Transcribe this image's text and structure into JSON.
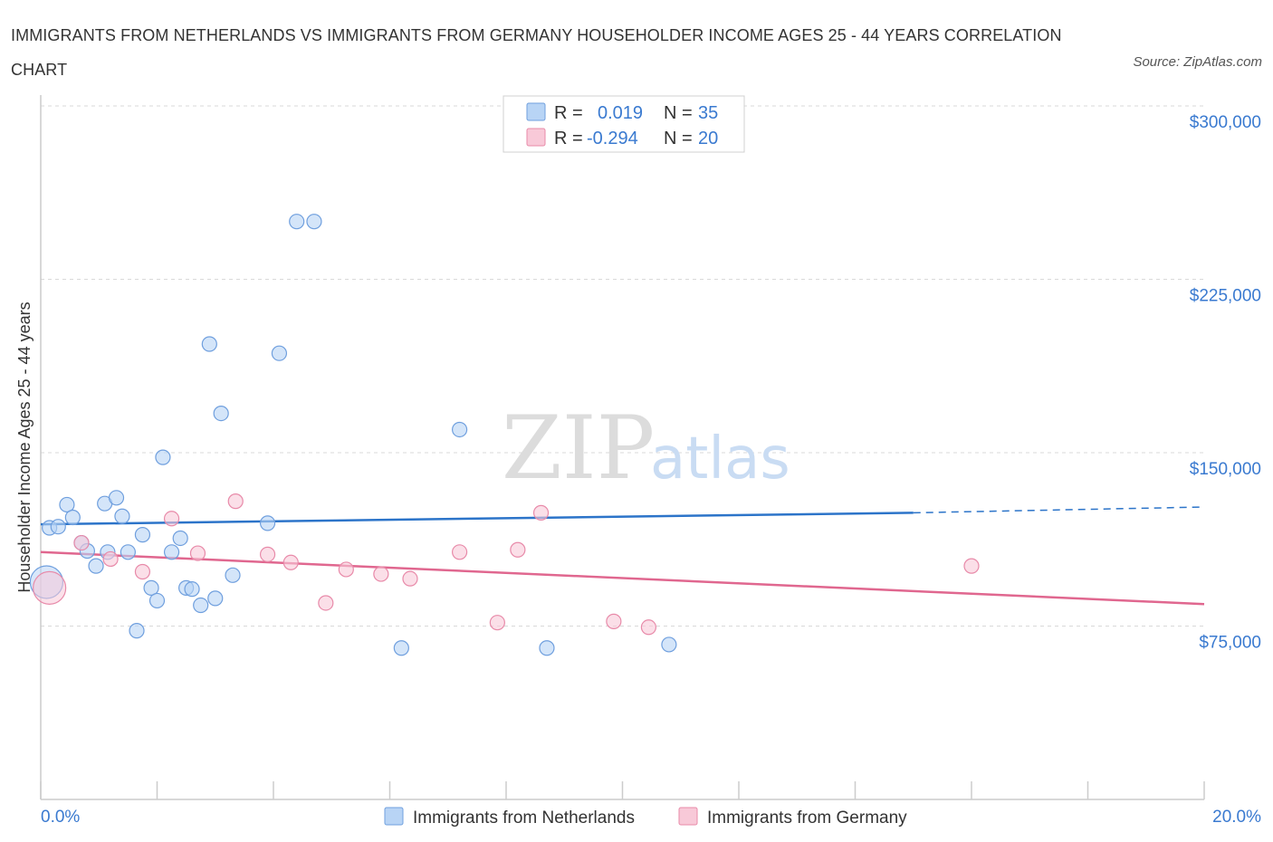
{
  "title": "IMMIGRANTS FROM NETHERLANDS VS IMMIGRANTS FROM GERMANY HOUSEHOLDER INCOME AGES 25 - 44 YEARS CORRELATION CHART",
  "source": "Source: ZipAtlas.com",
  "watermark": {
    "zip": "ZIP",
    "atlas": "atlas"
  },
  "colors": {
    "netherlands_fill": "#b8d4f5",
    "netherlands_stroke": "#6f9fde",
    "netherlands_line": "#2c74c9",
    "germany_fill": "#f8c9d8",
    "germany_stroke": "#e88aa9",
    "germany_line": "#e0678f",
    "axis_text": "#3a7ad0",
    "grid": "#d9d9d9"
  },
  "legend": {
    "rows": [
      {
        "r_label": "R =",
        "r_value": "0.019",
        "n_label": "N =",
        "n_value": "35"
      },
      {
        "r_label": "R =",
        "r_value": "-0.294",
        "n_label": "N =",
        "n_value": "20"
      }
    ]
  },
  "chart_data": {
    "type": "scatter",
    "title": "IMMIGRANTS FROM NETHERLANDS VS IMMIGRANTS FROM GERMANY HOUSEHOLDER INCOME AGES 25 - 44 YEARS CORRELATION CHART",
    "xlabel": "",
    "ylabel": "Householder Income Ages 25 - 44 years",
    "xlim": [
      0,
      20
    ],
    "ylim": [
      0,
      300000
    ],
    "x_tick_labels": [
      "0.0%",
      "20.0%"
    ],
    "y_ticks": [
      75000,
      150000,
      225000,
      300000
    ],
    "y_tick_labels": [
      "$75,000",
      "$150,000",
      "$225,000",
      "$300,000"
    ],
    "legend_position": "top-center",
    "series": [
      {
        "name": "Immigrants from Netherlands",
        "r": 0.019,
        "n": 35,
        "trend": {
          "x_start": 0.0,
          "y_start": 119000,
          "x_end": 15.0,
          "y_end": 124000,
          "dash_x_end": 20.0,
          "dash_y_end": 126500
        },
        "points": [
          {
            "x": 0.1,
            "y": 94000,
            "big": true
          },
          {
            "x": 0.15,
            "y": 117500
          },
          {
            "x": 0.3,
            "y": 118000
          },
          {
            "x": 0.45,
            "y": 127500
          },
          {
            "x": 0.55,
            "y": 122000
          },
          {
            "x": 0.7,
            "y": 111000
          },
          {
            "x": 0.8,
            "y": 107500
          },
          {
            "x": 0.95,
            "y": 101000
          },
          {
            "x": 1.1,
            "y": 128000
          },
          {
            "x": 1.15,
            "y": 107000
          },
          {
            "x": 1.3,
            "y": 130500
          },
          {
            "x": 1.4,
            "y": 122500
          },
          {
            "x": 1.5,
            "y": 107000
          },
          {
            "x": 1.65,
            "y": 73000
          },
          {
            "x": 1.75,
            "y": 114500
          },
          {
            "x": 1.9,
            "y": 91500
          },
          {
            "x": 2.0,
            "y": 86000
          },
          {
            "x": 2.1,
            "y": 148000
          },
          {
            "x": 2.25,
            "y": 107000
          },
          {
            "x": 2.4,
            "y": 113000
          },
          {
            "x": 2.5,
            "y": 91500
          },
          {
            "x": 2.6,
            "y": 91000
          },
          {
            "x": 2.75,
            "y": 84000
          },
          {
            "x": 2.9,
            "y": 197000
          },
          {
            "x": 3.0,
            "y": 87000
          },
          {
            "x": 3.1,
            "y": 167000
          },
          {
            "x": 3.3,
            "y": 97000
          },
          {
            "x": 3.9,
            "y": 119500
          },
          {
            "x": 4.1,
            "y": 193000
          },
          {
            "x": 4.4,
            "y": 250000
          },
          {
            "x": 4.7,
            "y": 250000
          },
          {
            "x": 6.2,
            "y": 65500
          },
          {
            "x": 7.2,
            "y": 160000
          },
          {
            "x": 8.7,
            "y": 65500
          },
          {
            "x": 10.8,
            "y": 67000
          }
        ]
      },
      {
        "name": "Immigrants from Germany",
        "r": -0.294,
        "n": 20,
        "trend": {
          "x_start": 0.0,
          "y_start": 107000,
          "x_end": 20.0,
          "y_end": 84500
        },
        "points": [
          {
            "x": 0.15,
            "y": 91500,
            "big": true
          },
          {
            "x": 0.7,
            "y": 111000
          },
          {
            "x": 1.2,
            "y": 104000
          },
          {
            "x": 1.75,
            "y": 98500
          },
          {
            "x": 2.25,
            "y": 121500
          },
          {
            "x": 2.7,
            "y": 106500
          },
          {
            "x": 3.35,
            "y": 129000
          },
          {
            "x": 3.9,
            "y": 106000
          },
          {
            "x": 4.3,
            "y": 102500
          },
          {
            "x": 4.9,
            "y": 85000
          },
          {
            "x": 5.25,
            "y": 99500
          },
          {
            "x": 5.85,
            "y": 97500
          },
          {
            "x": 6.35,
            "y": 95500
          },
          {
            "x": 7.2,
            "y": 107000
          },
          {
            "x": 7.85,
            "y": 76500
          },
          {
            "x": 8.2,
            "y": 108000
          },
          {
            "x": 8.6,
            "y": 124000
          },
          {
            "x": 9.85,
            "y": 77000
          },
          {
            "x": 10.45,
            "y": 74500
          },
          {
            "x": 16.0,
            "y": 101000
          }
        ]
      }
    ]
  }
}
